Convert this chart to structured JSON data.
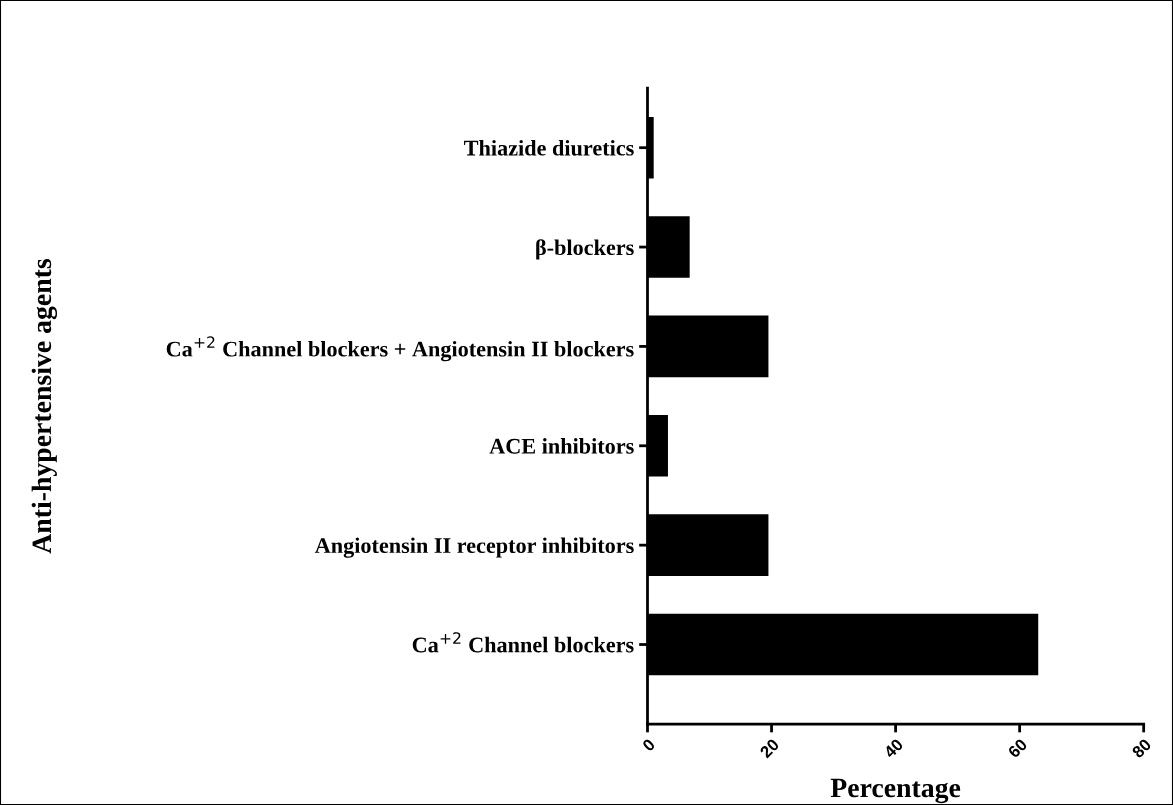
{
  "chart_data": {
    "type": "bar",
    "orientation": "horizontal",
    "xlabel": "Percentage",
    "ylabel": "Anti-hypertensive agents",
    "categories": [
      "Thiazide diuretics",
      "β-blockers",
      "Ca$^{+2}$ Channel blockers + Angiotensin II blockers",
      "ACE inhibitors",
      "Angiotensin II receptor inhibitors",
      "Ca$^{+2}$ Channel blockers"
    ],
    "values": [
      1,
      6.8,
      19.5,
      3.3,
      19.5,
      63
    ],
    "color": "#000000",
    "xlim": [
      0,
      80
    ],
    "xticks": [
      0,
      20,
      40,
      60,
      80
    ],
    "grid": false,
    "legend": false
  }
}
